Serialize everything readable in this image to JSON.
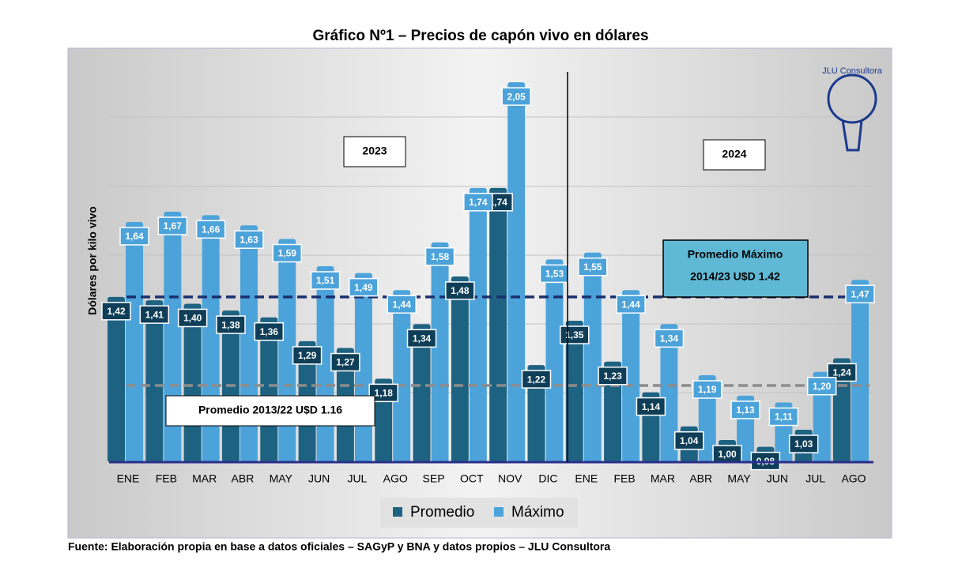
{
  "chart_data": {
    "type": "bar",
    "title": "Gráfico Nº1 – Precios de capón vivo en dólares",
    "y_label": "Dólares por kilo vivo",
    "source": "Fuente: Elaboración propia en base a datos oficiales – SAGyP y BNA y datos propios – JLU Consultora",
    "logo": "JLU Consultora",
    "year_labels": [
      "2023",
      "2024"
    ],
    "categories": [
      "ENE",
      "FEB",
      "MAR",
      "ABR",
      "MAY",
      "JUN",
      "JUL",
      "AGO",
      "SEP",
      "OCT",
      "NOV",
      "DIC",
      "ENE",
      "FEB",
      "MAR",
      "ABR",
      "MAY",
      "JUN",
      "JUL",
      "AGO"
    ],
    "series": [
      {
        "name": "Promedio",
        "color": "#1e6282",
        "label_color": "#0f3e58",
        "values": [
          1.42,
          1.41,
          1.4,
          1.38,
          1.36,
          1.29,
          1.27,
          1.18,
          1.34,
          1.48,
          1.74,
          1.22,
          1.35,
          1.23,
          1.14,
          1.04,
          1.0,
          0.98,
          1.03,
          1.24
        ],
        "value_labels": [
          "1,42",
          "1,41",
          "1,40",
          "1,38",
          "1,36",
          "1,29",
          "1,27",
          "1,18",
          "1,34",
          "1,48",
          "1,74",
          "1,22",
          "1,35",
          "1,23",
          "1,14",
          "1,04",
          "1,00",
          "0,98",
          "1,03",
          "1,24"
        ]
      },
      {
        "name": "Máximo",
        "color": "#4ca3da",
        "label_color": "#4ca3da",
        "values": [
          1.64,
          1.67,
          1.66,
          1.63,
          1.59,
          1.51,
          1.49,
          1.44,
          1.58,
          1.74,
          2.05,
          1.53,
          1.55,
          1.44,
          1.34,
          1.19,
          1.13,
          1.11,
          1.2,
          1.47
        ],
        "value_labels": [
          "1,64",
          "1,67",
          "1,66",
          "1,63",
          "1,59",
          "1,51",
          "1,49",
          "1,44",
          "1,58",
          "1,74",
          "2,05",
          "1,53",
          "1,55",
          "1,44",
          "1,34",
          "1,19",
          "1,13",
          "1,11",
          "1,20",
          "1,47"
        ]
      }
    ],
    "reference_lines": [
      {
        "value": 1.42,
        "label": [
          "Promedio Máximo",
          "2014/23 U$D 1.42"
        ],
        "color": "#1a2f6e"
      },
      {
        "value": 1.16,
        "label": [
          "Promedio 2013/22 U$D 1.16"
        ],
        "color": "#8c8c8c"
      }
    ],
    "ylim": [
      0.935,
      2.15
    ]
  }
}
